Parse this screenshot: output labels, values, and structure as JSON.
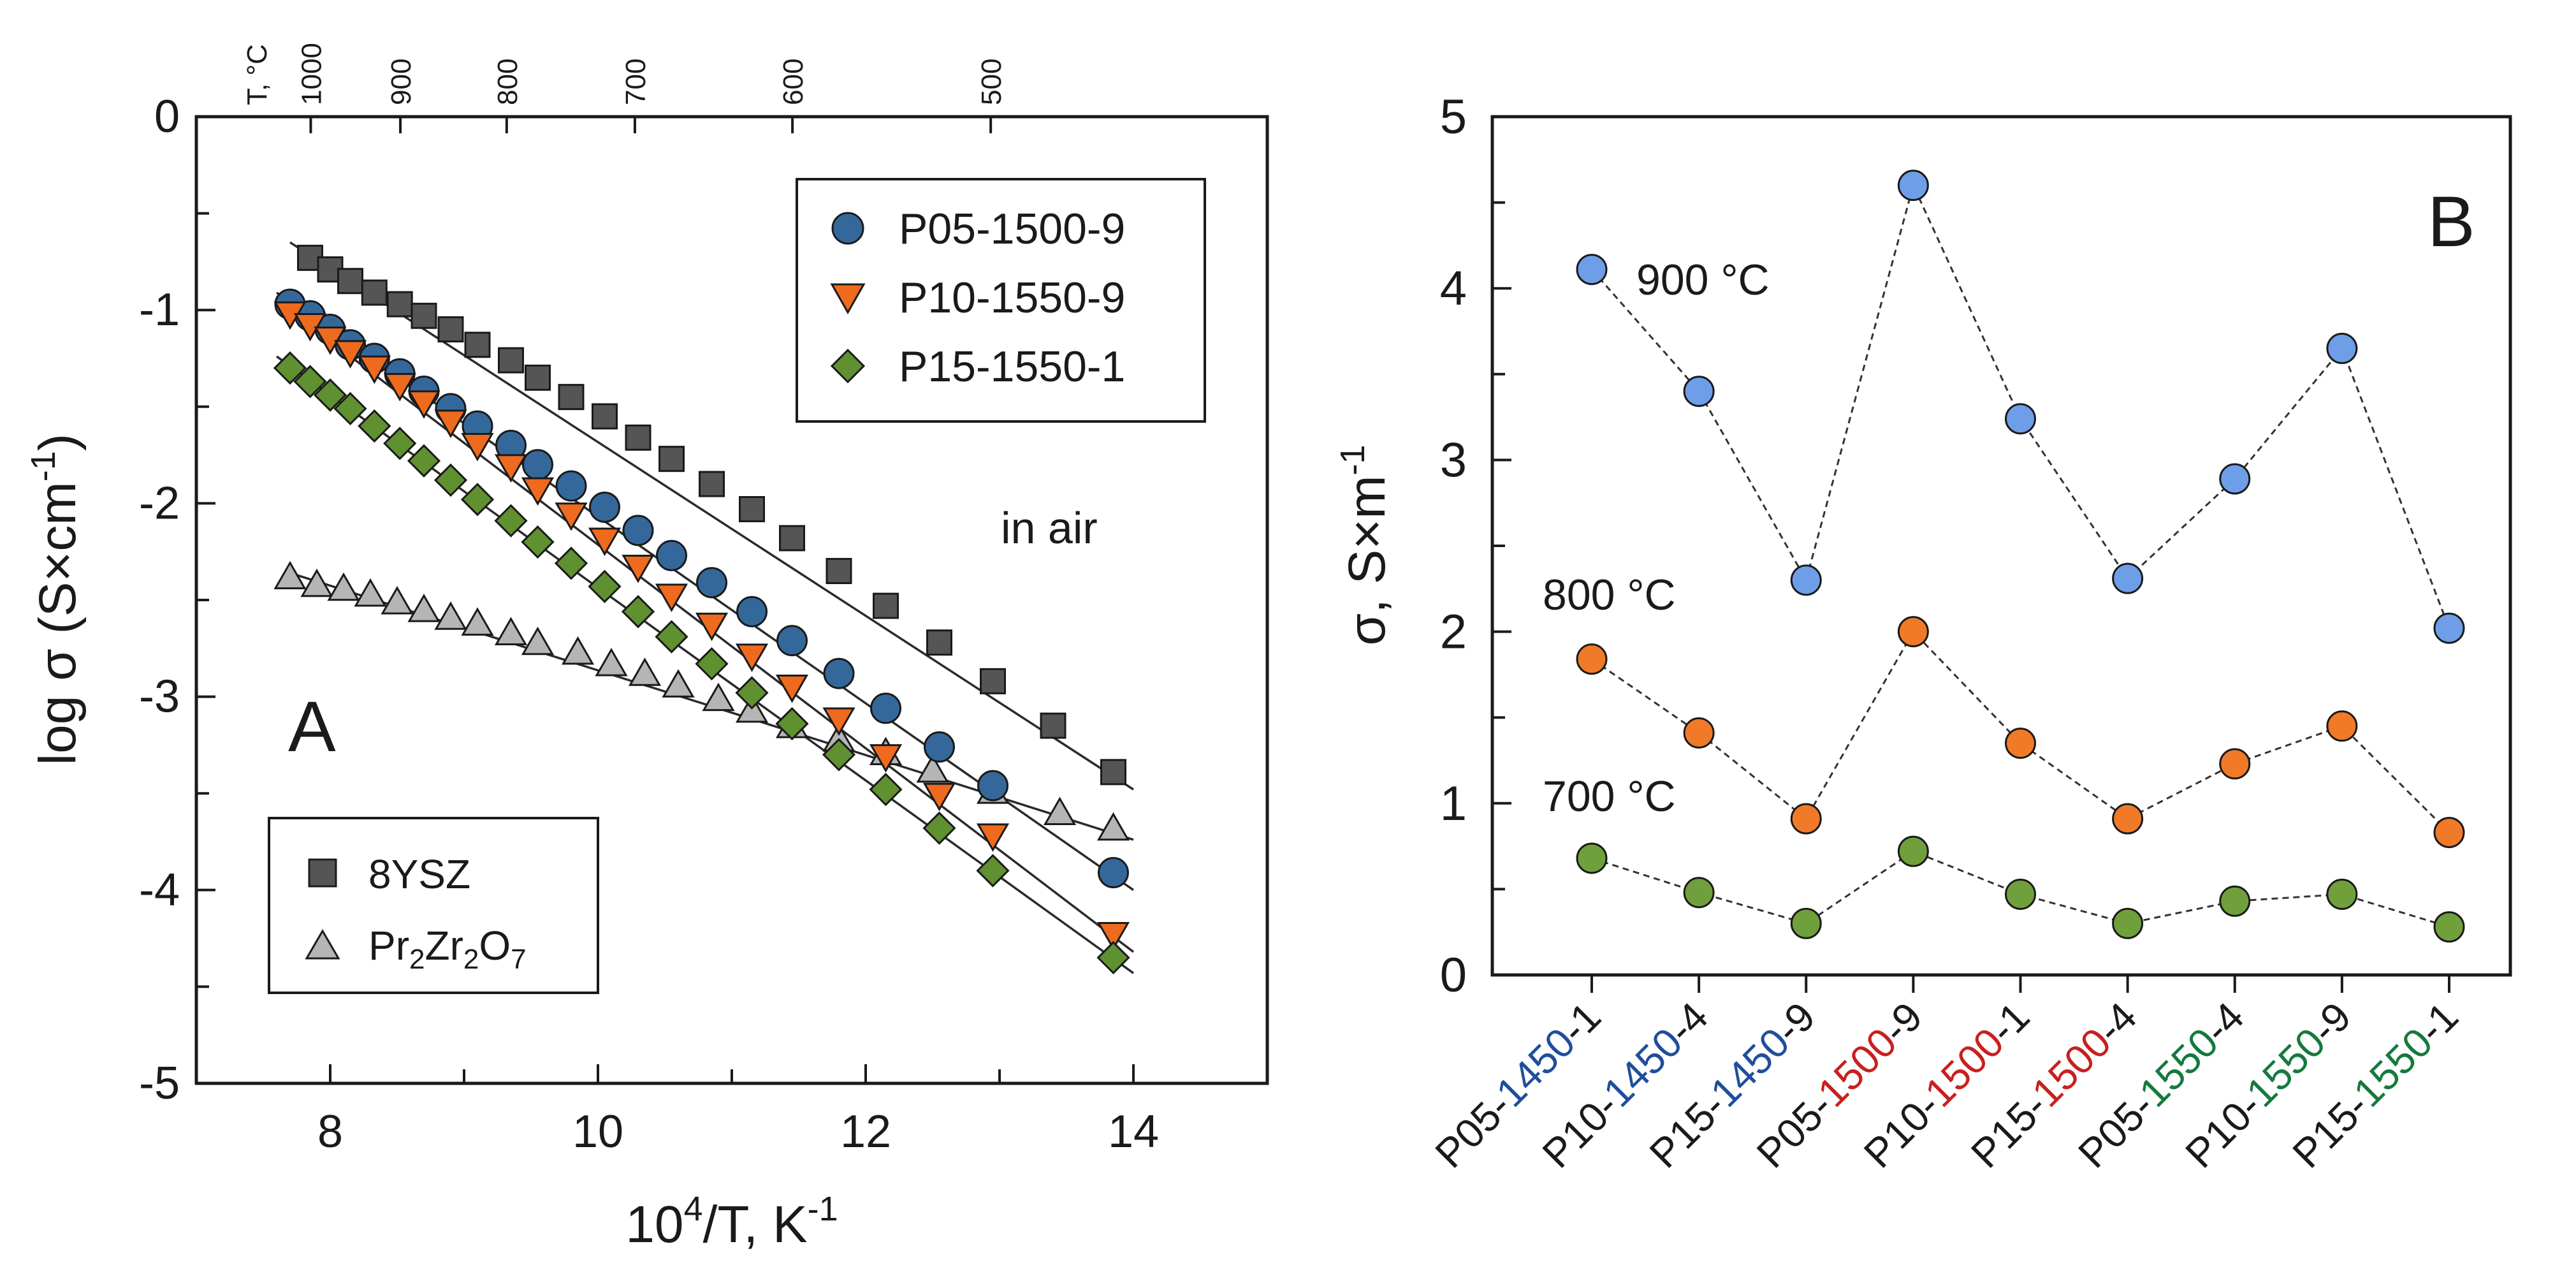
{
  "chart_data": [
    {
      "type": "scatter",
      "panel_label": "A",
      "xlabel_parts": {
        "base": "10",
        "sup": "4",
        "rest": "/T, K",
        "sup2": "-1"
      },
      "ylabel_parts": {
        "pre": "log σ (S×cm",
        "sup": "-1",
        "post": ")"
      },
      "xlim": [
        7,
        15
      ],
      "ylim": [
        -5,
        0
      ],
      "xticks": [
        8,
        10,
        12,
        14
      ],
      "yticks": [
        0,
        -1,
        -2,
        -3,
        -4,
        -5
      ],
      "top_axis": {
        "label": "T, °C",
        "ticks": [
          1000,
          900,
          800,
          700,
          600,
          500
        ]
      },
      "annotation": "in air",
      "legend_upper": [
        "P05-1500-9",
        "P10-1550-9",
        "P15-1550-1"
      ],
      "legend_lower": [
        {
          "name": "8YSZ"
        },
        {
          "parts": [
            "Pr",
            "2",
            "Zr",
            "2",
            "O",
            "7"
          ]
        }
      ],
      "series": [
        {
          "name": "8YSZ",
          "marker": "square",
          "color": "#555555",
          "x": [
            7.85,
            8.0,
            8.15,
            8.33,
            8.52,
            8.7,
            8.9,
            9.1,
            9.35,
            9.55,
            9.8,
            10.05,
            10.3,
            10.55,
            10.85,
            11.15,
            11.45,
            11.8,
            12.15,
            12.55,
            12.95,
            13.4,
            13.85
          ],
          "y": [
            -0.73,
            -0.79,
            -0.85,
            -0.91,
            -0.97,
            -1.03,
            -1.1,
            -1.18,
            -1.26,
            -1.35,
            -1.45,
            -1.55,
            -1.66,
            -1.77,
            -1.9,
            -2.03,
            -2.18,
            -2.35,
            -2.53,
            -2.72,
            -2.92,
            -3.15,
            -3.39
          ],
          "fit": [
            [
              7.7,
              -0.65
            ],
            [
              14.0,
              -3.48
            ]
          ]
        },
        {
          "name": "P05-1500-9",
          "marker": "circle",
          "color": "#35689a",
          "x": [
            7.7,
            7.85,
            8.0,
            8.15,
            8.33,
            8.52,
            8.7,
            8.9,
            9.1,
            9.35,
            9.55,
            9.8,
            10.05,
            10.3,
            10.55,
            10.85,
            11.15,
            11.45,
            11.8,
            12.15,
            12.55,
            12.95,
            13.85
          ],
          "y": [
            -0.97,
            -1.03,
            -1.1,
            -1.18,
            -1.25,
            -1.33,
            -1.42,
            -1.51,
            -1.6,
            -1.7,
            -1.8,
            -1.91,
            -2.02,
            -2.14,
            -2.27,
            -2.41,
            -2.56,
            -2.71,
            -2.88,
            -3.06,
            -3.26,
            -3.46,
            -3.91
          ],
          "fit": [
            [
              7.6,
              -0.91
            ],
            [
              14.0,
              -4.0
            ]
          ]
        },
        {
          "name": "P10-1550-9",
          "marker": "triangle-down",
          "color": "#ee6a1e",
          "x": [
            7.7,
            7.85,
            8.0,
            8.15,
            8.33,
            8.52,
            8.7,
            8.9,
            9.1,
            9.35,
            9.55,
            9.8,
            10.05,
            10.3,
            10.55,
            10.85,
            11.15,
            11.45,
            11.8,
            12.15,
            12.55,
            12.95,
            13.85
          ],
          "y": [
            -1.02,
            -1.08,
            -1.15,
            -1.22,
            -1.3,
            -1.39,
            -1.48,
            -1.58,
            -1.7,
            -1.81,
            -1.93,
            -2.06,
            -2.19,
            -2.33,
            -2.48,
            -2.63,
            -2.79,
            -2.95,
            -3.12,
            -3.31,
            -3.51,
            -3.72,
            -4.23
          ],
          "fit": [
            [
              7.6,
              -0.95
            ],
            [
              14.0,
              -4.32
            ]
          ]
        },
        {
          "name": "P15-1550-1",
          "marker": "diamond",
          "color": "#5f9130",
          "x": [
            7.7,
            7.85,
            8.0,
            8.15,
            8.33,
            8.52,
            8.7,
            8.9,
            9.1,
            9.35,
            9.55,
            9.8,
            10.05,
            10.3,
            10.55,
            10.85,
            11.15,
            11.45,
            11.8,
            12.15,
            12.55,
            12.95,
            13.85
          ],
          "y": [
            -1.3,
            -1.37,
            -1.44,
            -1.51,
            -1.6,
            -1.69,
            -1.78,
            -1.88,
            -1.98,
            -2.09,
            -2.2,
            -2.31,
            -2.43,
            -2.56,
            -2.69,
            -2.83,
            -2.98,
            -3.14,
            -3.3,
            -3.48,
            -3.68,
            -3.9,
            -4.35
          ],
          "fit": [
            [
              7.6,
              -1.24
            ],
            [
              14.0,
              -4.43
            ]
          ]
        },
        {
          "name": "Pr2Zr2O7",
          "marker": "triangle-up",
          "color": "#b5b5b5",
          "x": [
            7.7,
            7.9,
            8.1,
            8.3,
            8.5,
            8.7,
            8.9,
            9.1,
            9.35,
            9.55,
            9.85,
            10.1,
            10.35,
            10.6,
            10.9,
            11.15,
            11.45,
            11.8,
            12.15,
            12.5,
            12.95,
            13.45,
            13.85
          ],
          "y": [
            -2.38,
            -2.42,
            -2.44,
            -2.47,
            -2.51,
            -2.55,
            -2.59,
            -2.62,
            -2.67,
            -2.72,
            -2.77,
            -2.83,
            -2.88,
            -2.94,
            -3.01,
            -3.07,
            -3.15,
            -3.22,
            -3.29,
            -3.38,
            -3.49,
            -3.6,
            -3.68
          ],
          "fit": [
            [
              7.7,
              -2.36
            ],
            [
              14.0,
              -3.74
            ]
          ]
        }
      ]
    },
    {
      "type": "line",
      "panel_label": "B",
      "ylabel_parts": {
        "pre": "σ, S×m",
        "sup": "-1"
      },
      "ylim": [
        0,
        5
      ],
      "yticks": [
        0,
        1,
        2,
        3,
        4,
        5
      ],
      "categories": [
        "P05-1450-1",
        "P10-1450-4",
        "P15-1450-9",
        "P05-1500-9",
        "P10-1500-1",
        "P15-1500-4",
        "P05-1550-4",
        "P10-1550-9",
        "P15-1550-1"
      ],
      "category_parts": [
        {
          "prefix": "P05-",
          "mid": "1450",
          "suffix": "-1"
        },
        {
          "prefix": "P10-",
          "mid": "1450",
          "suffix": "-4"
        },
        {
          "prefix": "P15-",
          "mid": "1450",
          "suffix": "-9"
        },
        {
          "prefix": "P05-",
          "mid": "1500",
          "suffix": "-9"
        },
        {
          "prefix": "P10-",
          "mid": "1500",
          "suffix": "-1"
        },
        {
          "prefix": "P15-",
          "mid": "1500",
          "suffix": "-4"
        },
        {
          "prefix": "P05-",
          "mid": "1550",
          "suffix": "-4"
        },
        {
          "prefix": "P10-",
          "mid": "1550",
          "suffix": "-9"
        },
        {
          "prefix": "P15-",
          "mid": "1550",
          "suffix": "-1"
        }
      ],
      "mid_colors": {
        "1450": "#1f4e9c",
        "1500": "#c8201e",
        "1550": "#157a3c"
      },
      "series": [
        {
          "name": "900 °C",
          "color": "#6e9ee8",
          "values": [
            4.11,
            3.4,
            2.3,
            4.6,
            3.24,
            2.31,
            2.89,
            3.65,
            2.02
          ]
        },
        {
          "name": "800 °C",
          "color": "#f07a28",
          "values": [
            1.84,
            1.41,
            0.91,
            2.0,
            1.35,
            0.91,
            1.23,
            1.45,
            0.83
          ]
        },
        {
          "name": "700 °C",
          "color": "#6fa03c",
          "values": [
            0.68,
            0.48,
            0.3,
            0.72,
            0.47,
            0.3,
            0.43,
            0.47,
            0.28
          ]
        }
      ]
    }
  ]
}
